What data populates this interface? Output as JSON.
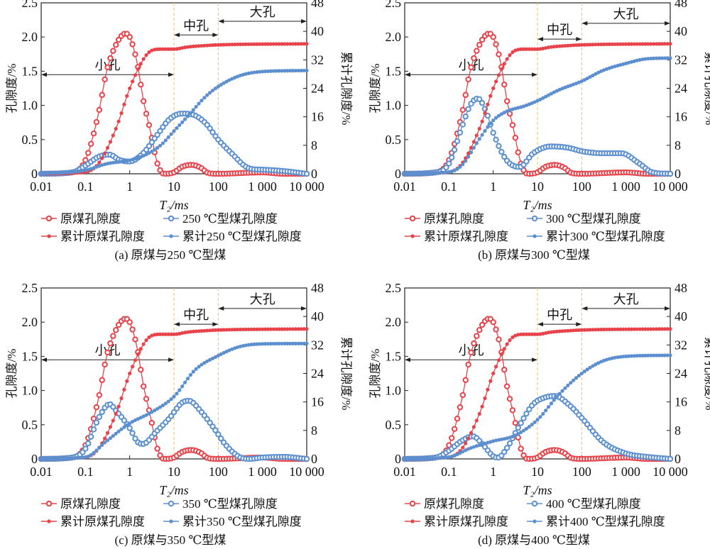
{
  "colors": {
    "raw": "#e8434a",
    "treated": "#5b8fcf",
    "zone_line": "#f2c14e",
    "axis": "#222222"
  },
  "chart_data": [
    {
      "type": "line",
      "caption": "(a)  原煤与250 ℃型煤",
      "xlabel": "T₂/ms",
      "ylabel": "孔隙度/%",
      "y2label": "累计孔隙度/%",
      "xscale": "log",
      "xlim": [
        0.01,
        10000
      ],
      "ylim": [
        0,
        2.5
      ],
      "y2lim": [
        0,
        48
      ],
      "xticks": [
        "0.01",
        "0.1",
        "1",
        "10",
        "100",
        "1 000",
        "10 000"
      ],
      "yticks": [
        "0",
        "0.5",
        "1.0",
        "1.5",
        "2.0",
        "2.5"
      ],
      "y2ticks": [
        "0",
        "8",
        "16",
        "24",
        "32",
        "40",
        "48"
      ],
      "zones": [
        {
          "label": "小孔",
          "from": 0.01,
          "to": 10,
          "y": 1.45
        },
        {
          "label": "中孔",
          "from": 10,
          "to": 100,
          "y": 2.03
        },
        {
          "label": "大孔",
          "from": 100,
          "to": 10000,
          "y": 2.23
        }
      ],
      "series": [
        {
          "name": "原煤孔隙度",
          "axis": "left",
          "color": "raw",
          "marker": "open",
          "x": [
            0.01,
            0.05,
            0.1,
            0.2,
            0.3,
            0.5,
            0.8,
            1,
            1.5,
            2,
            3,
            4,
            5,
            6,
            10,
            15,
            25,
            40,
            60,
            100,
            1000,
            3000,
            10000
          ],
          "y": [
            0,
            0.02,
            0.2,
            0.9,
            1.5,
            1.9,
            2.05,
            2.0,
            1.6,
            1.1,
            0.6,
            0.2,
            0.04,
            0,
            0.02,
            0.1,
            0.13,
            0.09,
            0.01,
            0,
            0.02,
            0,
            0
          ]
        },
        {
          "name": "250 ℃型煤孔隙度",
          "axis": "left",
          "color": "treated",
          "marker": "open",
          "x": [
            0.01,
            0.05,
            0.1,
            0.2,
            0.35,
            0.6,
            1,
            2,
            4,
            8,
            15,
            25,
            50,
            100,
            200,
            500,
            1000,
            3000,
            10000
          ],
          "y": [
            0,
            0.02,
            0.12,
            0.25,
            0.28,
            0.2,
            0.18,
            0.3,
            0.55,
            0.8,
            0.88,
            0.87,
            0.75,
            0.5,
            0.3,
            0.08,
            0.06,
            0.04,
            0
          ]
        },
        {
          "name": "累计原煤孔隙度",
          "axis": "right",
          "color": "raw",
          "marker": "filled",
          "x": [
            0.01,
            0.1,
            0.2,
            0.5,
            1,
            2,
            3,
            5,
            10,
            20,
            50,
            100,
            10000
          ],
          "y": [
            0,
            0.5,
            3,
            13,
            24,
            32,
            34.5,
            35,
            35,
            35.6,
            36,
            36.2,
            36.5
          ]
        },
        {
          "name": "累计250 ℃型煤孔隙度",
          "axis": "right",
          "color": "treated",
          "marker": "filled",
          "x": [
            0.01,
            0.1,
            0.3,
            1,
            2,
            5,
            10,
            20,
            50,
            100,
            300,
            1000,
            10000
          ],
          "y": [
            0,
            1,
            2.8,
            3.8,
            5,
            8,
            12,
            16,
            21.5,
            24.5,
            27.5,
            28.7,
            29
          ]
        }
      ]
    },
    {
      "type": "line",
      "caption": "(b)  原煤与300 ℃型煤",
      "xlabel": "T₂/ms",
      "ylabel": "孔隙度/%",
      "y2label": "累计孔隙度/%",
      "xscale": "log",
      "xlim": [
        0.01,
        10000
      ],
      "ylim": [
        0,
        2.5
      ],
      "y2lim": [
        0,
        48
      ],
      "xticks": [
        "0.01",
        "0.1",
        "1",
        "10",
        "100",
        "1 000",
        "10 000"
      ],
      "yticks": [
        "0",
        "0.5",
        "1.0",
        "1.5",
        "2.0",
        "2.5"
      ],
      "y2ticks": [
        "0",
        "8",
        "16",
        "24",
        "32",
        "40",
        "48"
      ],
      "zones": [
        {
          "label": "小孔",
          "from": 0.01,
          "to": 10,
          "y": 1.45
        },
        {
          "label": "中孔",
          "from": 10,
          "to": 100,
          "y": 1.97
        },
        {
          "label": "大孔",
          "from": 100,
          "to": 10000,
          "y": 2.2
        }
      ],
      "series": [
        {
          "name": "原煤孔隙度",
          "axis": "left",
          "color": "raw",
          "marker": "open",
          "x": [
            0.01,
            0.05,
            0.1,
            0.2,
            0.3,
            0.5,
            0.8,
            1,
            1.5,
            2,
            3,
            4,
            5,
            6,
            10,
            15,
            25,
            40,
            60,
            100,
            1000,
            3000,
            10000
          ],
          "y": [
            0,
            0.02,
            0.2,
            0.9,
            1.5,
            1.9,
            2.05,
            2.0,
            1.6,
            1.1,
            0.6,
            0.2,
            0.04,
            0,
            0.02,
            0.1,
            0.13,
            0.09,
            0.01,
            0,
            0.02,
            0,
            0
          ]
        },
        {
          "name": "300 ℃型煤孔隙度",
          "axis": "left",
          "color": "treated",
          "marker": "open",
          "x": [
            0.01,
            0.05,
            0.1,
            0.2,
            0.3,
            0.45,
            0.7,
            1,
            2,
            4,
            8,
            20,
            50,
            100,
            300,
            800,
            2000,
            4000,
            10000
          ],
          "y": [
            0,
            0.02,
            0.15,
            0.7,
            1.0,
            1.1,
            0.9,
            0.6,
            0.2,
            0.1,
            0.3,
            0.4,
            0.38,
            0.33,
            0.3,
            0.3,
            0.15,
            0.02,
            0
          ]
        },
        {
          "name": "累计原煤孔隙度",
          "axis": "right",
          "color": "raw",
          "marker": "filled",
          "x": [
            0.01,
            0.1,
            0.2,
            0.5,
            1,
            2,
            3,
            5,
            10,
            20,
            50,
            100,
            10000
          ],
          "y": [
            0,
            0.5,
            3,
            13,
            24,
            32,
            34.5,
            35,
            35,
            35.6,
            36,
            36.2,
            36.5
          ]
        },
        {
          "name": "累计300 ℃型煤孔隙度",
          "axis": "right",
          "color": "treated",
          "marker": "filled",
          "x": [
            0.01,
            0.1,
            0.2,
            0.5,
            1,
            2,
            5,
            10,
            30,
            100,
            300,
            1000,
            3000,
            10000
          ],
          "y": [
            0,
            0.5,
            2.5,
            10,
            15,
            17.5,
            19,
            20.5,
            23.5,
            26,
            29,
            31,
            32.3,
            32.5
          ]
        }
      ]
    },
    {
      "type": "line",
      "caption": "(c)  原煤与350 ℃型煤",
      "xlabel": "T₂/ms",
      "ylabel": "孔隙度/%",
      "y2label": "累计孔隙度/%",
      "xscale": "log",
      "xlim": [
        0.01,
        10000
      ],
      "ylim": [
        0,
        2.5
      ],
      "y2lim": [
        0,
        48
      ],
      "xticks": [
        "0.01",
        "0.1",
        "1",
        "10",
        "100",
        "1 000",
        "10 000"
      ],
      "yticks": [
        "0",
        "0.5",
        "1.0",
        "1.5",
        "2.0",
        "2.5"
      ],
      "y2ticks": [
        "0",
        "8",
        "16",
        "24",
        "32",
        "40",
        "48"
      ],
      "zones": [
        {
          "label": "小孔",
          "from": 0.01,
          "to": 10,
          "y": 1.45
        },
        {
          "label": "中孔",
          "from": 10,
          "to": 100,
          "y": 1.97
        },
        {
          "label": "大孔",
          "from": 100,
          "to": 10000,
          "y": 2.2
        }
      ],
      "series": [
        {
          "name": "原煤孔隙度",
          "axis": "left",
          "color": "raw",
          "marker": "open",
          "x": [
            0.01,
            0.05,
            0.1,
            0.2,
            0.3,
            0.5,
            0.8,
            1,
            1.5,
            2,
            3,
            4,
            5,
            6,
            10,
            15,
            25,
            40,
            60,
            100,
            1000,
            3000,
            10000
          ],
          "y": [
            0,
            0.02,
            0.2,
            0.9,
            1.5,
            1.9,
            2.05,
            2.0,
            1.6,
            1.1,
            0.6,
            0.2,
            0.04,
            0,
            0.02,
            0.1,
            0.13,
            0.09,
            0.01,
            0,
            0.02,
            0,
            0
          ]
        },
        {
          "name": "350 ℃型煤孔隙度",
          "axis": "left",
          "color": "treated",
          "marker": "open",
          "x": [
            0.01,
            0.05,
            0.1,
            0.2,
            0.35,
            0.5,
            1,
            1.5,
            2,
            4,
            8,
            15,
            22,
            40,
            80,
            150,
            300,
            500,
            1000,
            3000,
            10000
          ],
          "y": [
            0,
            0.02,
            0.15,
            0.6,
            0.8,
            0.7,
            0.45,
            0.25,
            0.22,
            0.4,
            0.6,
            0.82,
            0.85,
            0.7,
            0.45,
            0.2,
            0.03,
            0,
            0.02,
            0.03,
            0
          ]
        },
        {
          "name": "累计原煤孔隙度",
          "axis": "right",
          "color": "raw",
          "marker": "filled",
          "x": [
            0.01,
            0.1,
            0.2,
            0.5,
            1,
            2,
            3,
            5,
            10,
            20,
            50,
            100,
            10000
          ],
          "y": [
            0,
            0.5,
            3,
            13,
            24,
            32,
            34.5,
            35,
            35,
            35.6,
            36,
            36.2,
            36.5
          ]
        },
        {
          "name": "累计350 ℃型煤孔隙度",
          "axis": "right",
          "color": "treated",
          "marker": "filled",
          "x": [
            0.01,
            0.1,
            0.3,
            1,
            3,
            10,
            30,
            100,
            300,
            1000,
            10000
          ],
          "y": [
            0,
            0.5,
            5,
            10,
            13,
            17.5,
            25,
            29,
            31.5,
            32.3,
            32.4
          ]
        }
      ]
    },
    {
      "type": "line",
      "caption": "(d)  原煤与400 ℃型煤",
      "xlabel": "T₂/ms",
      "ylabel": "孔隙度/%",
      "y2label": "累计孔隙度/%",
      "xscale": "log",
      "xlim": [
        0.01,
        10000
      ],
      "ylim": [
        0,
        2.5
      ],
      "y2lim": [
        0,
        48
      ],
      "xticks": [
        "0.01",
        "0.1",
        "1",
        "10",
        "100",
        "1 000",
        "10 000"
      ],
      "yticks": [
        "0",
        "0.5",
        "1.0",
        "1.5",
        "2.0",
        "2.5"
      ],
      "y2ticks": [
        "0",
        "8",
        "16",
        "24",
        "32",
        "40",
        "48"
      ],
      "zones": [
        {
          "label": "小孔",
          "from": 0.01,
          "to": 10,
          "y": 1.45
        },
        {
          "label": "中孔",
          "from": 10,
          "to": 100,
          "y": 1.97
        },
        {
          "label": "大孔",
          "from": 100,
          "to": 10000,
          "y": 2.2
        }
      ],
      "series": [
        {
          "name": "原煤孔隙度",
          "axis": "left",
          "color": "raw",
          "marker": "open",
          "x": [
            0.01,
            0.05,
            0.1,
            0.2,
            0.3,
            0.5,
            0.8,
            1,
            1.5,
            2,
            3,
            4,
            5,
            6,
            10,
            15,
            25,
            40,
            60,
            100,
            1000,
            3000,
            10000
          ],
          "y": [
            0,
            0.02,
            0.2,
            0.9,
            1.5,
            1.9,
            2.05,
            2.0,
            1.6,
            1.1,
            0.6,
            0.2,
            0.04,
            0,
            0.02,
            0.1,
            0.13,
            0.09,
            0.01,
            0,
            0.02,
            0,
            0
          ]
        },
        {
          "name": "400 ℃型煤孔隙度",
          "axis": "left",
          "color": "treated",
          "marker": "open",
          "x": [
            0.01,
            0.05,
            0.1,
            0.2,
            0.35,
            0.6,
            1,
            1.3,
            2,
            4,
            8,
            15,
            25,
            50,
            100,
            300,
            1000,
            3000,
            10000
          ],
          "y": [
            0,
            0.02,
            0.12,
            0.27,
            0.33,
            0.2,
            0.04,
            0.02,
            0.15,
            0.5,
            0.8,
            0.9,
            0.92,
            0.8,
            0.6,
            0.25,
            0.08,
            0.03,
            0
          ]
        },
        {
          "name": "累计原煤孔隙度",
          "axis": "right",
          "color": "raw",
          "marker": "filled",
          "x": [
            0.01,
            0.1,
            0.2,
            0.5,
            1,
            2,
            3,
            5,
            10,
            20,
            50,
            100,
            10000
          ],
          "y": [
            0,
            0.5,
            3,
            13,
            24,
            32,
            34.5,
            35,
            35,
            35.6,
            36,
            36.2,
            36.5
          ]
        },
        {
          "name": "累计400 ℃型煤孔隙度",
          "axis": "right",
          "color": "treated",
          "marker": "filled",
          "x": [
            0.01,
            0.1,
            0.3,
            1,
            3,
            10,
            30,
            100,
            300,
            1000,
            10000
          ],
          "y": [
            0,
            0.5,
            3,
            5,
            6.5,
            11,
            18,
            24,
            27.5,
            28.8,
            29.1
          ]
        }
      ]
    }
  ]
}
